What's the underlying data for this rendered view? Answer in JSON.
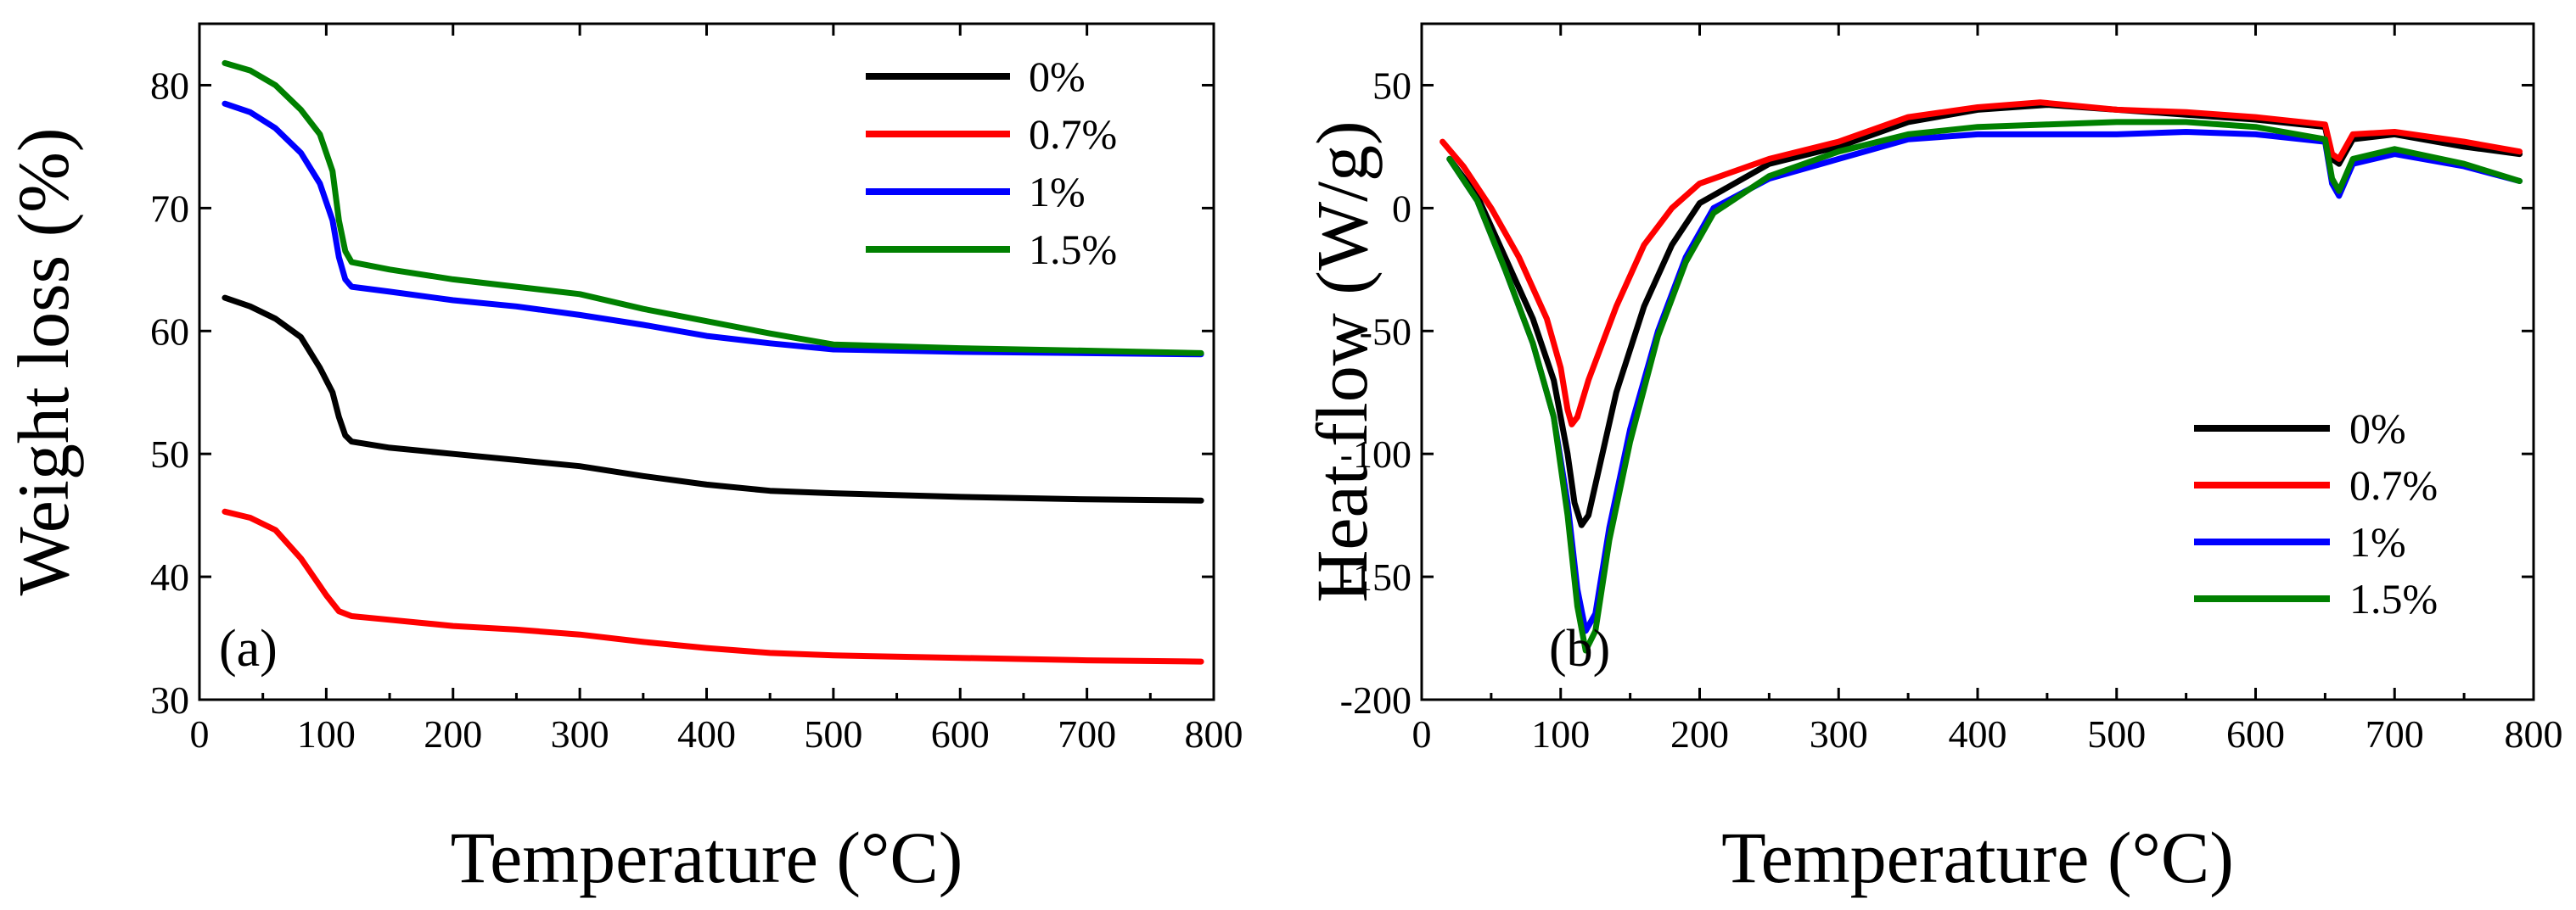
{
  "chart_data": [
    {
      "type": "line",
      "panel_label": "(a)",
      "xlabel": "Temperature (°C)",
      "ylabel": "Weight loss (%)",
      "xlim": [
        0,
        800
      ],
      "ylim": [
        30,
        85
      ],
      "xticks": [
        0,
        100,
        200,
        300,
        400,
        500,
        600,
        700,
        800
      ],
      "yticks": [
        30,
        40,
        50,
        60,
        70,
        80
      ],
      "legend_position": "top-right",
      "grid": false,
      "series": [
        {
          "name": "0%",
          "color": "#000000",
          "x": [
            20,
            40,
            60,
            80,
            95,
            105,
            110,
            115,
            120,
            150,
            200,
            250,
            300,
            350,
            400,
            450,
            500,
            600,
            700,
            790
          ],
          "y": [
            62.7,
            62,
            61,
            59.5,
            57,
            55,
            53,
            51.5,
            51,
            50.5,
            50,
            49.5,
            49,
            48.2,
            47.5,
            47,
            46.8,
            46.5,
            46.3,
            46.2
          ]
        },
        {
          "name": "0.7%",
          "color": "#ff0000",
          "x": [
            20,
            40,
            60,
            80,
            100,
            110,
            115,
            120,
            150,
            200,
            250,
            300,
            350,
            400,
            450,
            500,
            600,
            700,
            790
          ],
          "y": [
            45.3,
            44.8,
            43.8,
            41.5,
            38.5,
            37.2,
            37,
            36.8,
            36.5,
            36,
            35.7,
            35.3,
            34.7,
            34.2,
            33.8,
            33.6,
            33.4,
            33.2,
            33.1
          ]
        },
        {
          "name": "1%",
          "color": "#0000ff",
          "x": [
            20,
            40,
            60,
            80,
            95,
            105,
            110,
            115,
            120,
            150,
            200,
            250,
            300,
            350,
            400,
            450,
            500,
            600,
            700,
            790
          ],
          "y": [
            78.5,
            77.8,
            76.5,
            74.5,
            72,
            69,
            66,
            64.2,
            63.6,
            63.2,
            62.5,
            62,
            61.3,
            60.5,
            59.6,
            59,
            58.5,
            58.3,
            58.2,
            58.1
          ]
        },
        {
          "name": "1.5%",
          "color": "#008000",
          "x": [
            20,
            40,
            60,
            80,
            95,
            105,
            110,
            115,
            120,
            150,
            200,
            250,
            300,
            350,
            400,
            450,
            500,
            600,
            700,
            790
          ],
          "y": [
            81.8,
            81.2,
            80,
            78,
            76,
            73,
            69,
            66.5,
            65.6,
            65,
            64.2,
            63.6,
            63,
            61.8,
            60.8,
            59.8,
            58.9,
            58.6,
            58.4,
            58.2
          ]
        }
      ]
    },
    {
      "type": "line",
      "panel_label": "(b)",
      "xlabel": "Temperature (°C)",
      "ylabel": "Heat flow (W/g)",
      "xlim": [
        0,
        800
      ],
      "ylim": [
        -200,
        75
      ],
      "xticks": [
        0,
        100,
        200,
        300,
        400,
        500,
        600,
        700,
        800
      ],
      "yticks": [
        -200,
        -150,
        -100,
        -50,
        0,
        50
      ],
      "legend_position": "bottom-right",
      "grid": false,
      "series": [
        {
          "name": "0%",
          "color": "#000000",
          "x": [
            20,
            40,
            60,
            80,
            95,
            105,
            110,
            115,
            120,
            130,
            140,
            160,
            180,
            200,
            250,
            300,
            350,
            400,
            450,
            500,
            550,
            600,
            650,
            655,
            660,
            670,
            700,
            750,
            790
          ],
          "y": [
            20,
            5,
            -20,
            -45,
            -70,
            -100,
            -120,
            -129,
            -125,
            -100,
            -75,
            -40,
            -15,
            2,
            18,
            25,
            35,
            40,
            42,
            40,
            38,
            36,
            33,
            20,
            18,
            28,
            30,
            25,
            22
          ]
        },
        {
          "name": "0.7%",
          "color": "#ff0000",
          "x": [
            15,
            30,
            50,
            70,
            90,
            100,
            105,
            108,
            112,
            120,
            140,
            160,
            180,
            200,
            250,
            300,
            350,
            400,
            445,
            500,
            550,
            600,
            650,
            655,
            660,
            670,
            700,
            750,
            790
          ],
          "y": [
            27,
            17,
            0,
            -20,
            -45,
            -65,
            -82,
            -88,
            -85,
            -70,
            -40,
            -15,
            0,
            10,
            20,
            27,
            37,
            41,
            43,
            40,
            39,
            37,
            34,
            22,
            20,
            30,
            31,
            27,
            23
          ]
        },
        {
          "name": "1%",
          "color": "#0000ff",
          "x": [
            20,
            40,
            60,
            80,
            95,
            105,
            112,
            118,
            125,
            135,
            150,
            170,
            190,
            210,
            250,
            300,
            350,
            400,
            450,
            500,
            550,
            600,
            650,
            655,
            660,
            670,
            700,
            750,
            790
          ],
          "y": [
            20,
            3,
            -25,
            -55,
            -85,
            -120,
            -155,
            -172,
            -165,
            -130,
            -90,
            -50,
            -20,
            0,
            12,
            20,
            28,
            30,
            30,
            30,
            31,
            30,
            27,
            10,
            5,
            18,
            22,
            17,
            11
          ]
        },
        {
          "name": "1.5%",
          "color": "#008000",
          "x": [
            20,
            40,
            60,
            80,
            95,
            105,
            112,
            118,
            125,
            135,
            150,
            170,
            190,
            210,
            250,
            300,
            350,
            400,
            450,
            500,
            550,
            600,
            650,
            655,
            660,
            670,
            700,
            750,
            790
          ],
          "y": [
            20,
            3,
            -25,
            -55,
            -85,
            -125,
            -162,
            -180,
            -172,
            -135,
            -95,
            -52,
            -22,
            -2,
            13,
            23,
            30,
            33,
            34,
            35,
            35,
            33,
            28,
            12,
            7,
            20,
            24,
            18,
            11
          ]
        }
      ]
    }
  ]
}
